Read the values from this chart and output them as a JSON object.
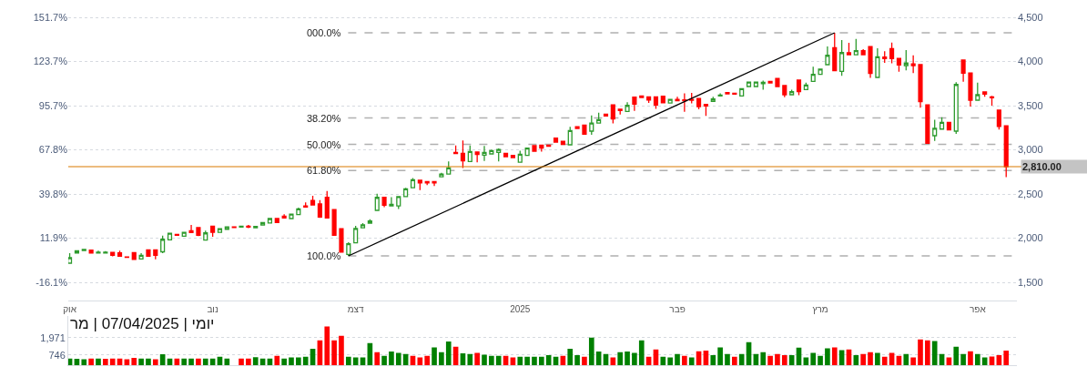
{
  "chart_data": [
    {
      "type": "candlestick",
      "categories": [
        "אוק",
        null,
        null,
        null,
        null,
        null,
        null,
        null,
        null,
        null,
        null,
        null,
        null,
        null,
        null,
        null,
        null,
        null,
        null,
        null,
        "נוב",
        null,
        null,
        null,
        null,
        null,
        null,
        null,
        null,
        null,
        null,
        null,
        null,
        null,
        null,
        null,
        null,
        null,
        null,
        null,
        "דצמ",
        null,
        null,
        null,
        null,
        null,
        null,
        null,
        null,
        null,
        null,
        null,
        null,
        null,
        null,
        null,
        null,
        null,
        null,
        null,
        null,
        null,
        null,
        "2025",
        null,
        null,
        null,
        null,
        null,
        null,
        null,
        null,
        null,
        null,
        null,
        null,
        null,
        null,
        null,
        null,
        null,
        null,
        null,
        null,
        null,
        "פבר",
        null,
        null,
        null,
        null,
        null,
        null,
        null,
        null,
        null,
        null,
        null,
        null,
        null,
        null,
        null,
        null,
        null,
        null,
        null,
        "מרץ",
        null,
        null,
        null,
        null,
        null,
        null,
        null,
        null,
        null,
        null,
        null,
        null,
        null,
        null,
        null,
        null,
        null,
        null,
        null,
        null,
        null,
        "אפר",
        null,
        null,
        null,
        null
      ],
      "series": [
        {
          "type": "candlestick",
          "ohlc": [
            [
              1717,
              1830,
              1717,
              1779
            ],
            [
              1833,
              1865,
              1825,
              1858
            ],
            [
              1861,
              1880,
              1855,
              1874
            ],
            [
              1864,
              1870,
              1825,
              1833
            ],
            [
              1833,
              1858,
              1830,
              1843
            ],
            [
              1833,
              1855,
              1828,
              1843
            ],
            [
              1840,
              1845,
              1795,
              1806
            ],
            [
              1833,
              1860,
              1796,
              1796
            ],
            [
              1789,
              1789,
              1782,
              1782
            ],
            [
              1837,
              1837,
              1761,
              1761
            ],
            [
              1765,
              1830,
              1765,
              1806
            ],
            [
              1868,
              1868,
              1796,
              1796
            ],
            [
              1868,
              1868,
              1760,
              1806
            ],
            [
              1846,
              2030,
              1830,
              1988
            ],
            [
              1982,
              2057,
              1982,
              2057
            ],
            [
              2043,
              2050,
              2030,
              2033
            ],
            [
              2023,
              2067,
              2023,
              2067
            ],
            [
              2085,
              2150,
              2064,
              2064
            ],
            [
              2119,
              2119,
              2023,
              2033
            ],
            [
              1978,
              2085,
              1978,
              2060
            ],
            [
              2136,
              2136,
              2016,
              2067
            ],
            [
              2067,
              2108,
              2067,
              2108
            ],
            [
              2101,
              2129,
              2101,
              2129
            ],
            [
              2129,
              2129,
              2122,
              2122
            ],
            [
              2125,
              2136,
              2125,
              2136
            ],
            [
              2136,
              2150,
              2115,
              2125
            ],
            [
              2118,
              2140,
              2118,
              2132
            ],
            [
              2150,
              2178,
              2150,
              2178
            ],
            [
              2173,
              2222,
              2173,
              2222
            ],
            [
              2222,
              2222,
              2178,
              2178
            ],
            [
              2250,
              2270,
              2229,
              2229
            ],
            [
              2222,
              2273,
              2222,
              2273
            ],
            [
              2267,
              2345,
              2267,
              2332
            ],
            [
              2366,
              2405,
              2353,
              2353
            ],
            [
              2428,
              2480,
              2377,
              2377
            ],
            [
              2387,
              2430,
              2230,
              2240
            ],
            [
              2462,
              2535,
              2229,
              2229
            ],
            [
              2325,
              2325,
              2033,
              2033
            ],
            [
              2108,
              2108,
              1843,
              1843
            ],
            [
              1817,
              1955,
              1800,
              1937
            ],
            [
              1947,
              2140,
              1947,
              2111
            ],
            [
              2118,
              2170,
              2118,
              2152
            ],
            [
              2170,
              2215,
              2170,
              2194
            ],
            [
              2315,
              2502,
              2315,
              2462
            ],
            [
              2462,
              2462,
              2350,
              2374
            ],
            [
              2366,
              2465,
              2366,
              2384
            ],
            [
              2366,
              2470,
              2330,
              2470
            ],
            [
              2470,
              2570,
              2470,
              2559
            ],
            [
              2572,
              2680,
              2572,
              2662
            ],
            [
              2655,
              2655,
              2545,
              2627
            ],
            [
              2640,
              2640,
              2600,
              2627
            ],
            [
              2640,
              2640,
              2590,
              2627
            ],
            [
              2696,
              2740,
              2696,
              2727
            ],
            [
              2727,
              2870,
              2727,
              2796
            ],
            [
              2971,
              3050,
              2957,
              2957
            ],
            [
              2961,
              3105,
              2795,
              2875
            ],
            [
              2868,
              3050,
              2868,
              2982
            ],
            [
              2975,
              2975,
              2860,
              2947
            ],
            [
              2940,
              3045,
              2875,
              2971
            ],
            [
              2954,
              3002,
              2954,
              2992
            ],
            [
              2971,
              3015,
              2870,
              3005
            ],
            [
              2961,
              2961,
              2923,
              2923
            ],
            [
              2937,
              2937,
              2913,
              2913
            ],
            [
              2861,
              2990,
              2861,
              2951
            ],
            [
              2937,
              3019,
              2937,
              3019
            ],
            [
              3047,
              3047,
              2985,
              2985
            ],
            [
              3054,
              3054,
              2980,
              3019
            ],
            [
              3054,
              3054,
              3040,
              3040
            ],
            [
              3132,
              3132,
              3088,
              3088
            ],
            [
              3098,
              3098,
              3060,
              3060
            ],
            [
              3057,
              3260,
              3057,
              3219
            ],
            [
              3263,
              3263,
              3242,
              3242
            ],
            [
              3281,
              3281,
              3170,
              3178
            ],
            [
              3212,
              3390,
              3170,
              3304
            ],
            [
              3304,
              3420,
              3304,
              3342
            ],
            [
              3404,
              3404,
              3384,
              3384
            ],
            [
              3510,
              3510,
              3300,
              3349
            ],
            [
              3459,
              3459,
              3400,
              3446
            ],
            [
              3435,
              3540,
              3435,
              3503
            ],
            [
              3596,
              3596,
              3440,
              3518
            ],
            [
              3610,
              3610,
              3593,
              3593
            ],
            [
              3600,
              3600,
              3530,
              3565
            ],
            [
              3600,
              3600,
              3465,
              3507
            ],
            [
              3606,
              3606,
              3534,
              3534
            ],
            [
              3531,
              3572,
              3531,
              3572
            ],
            [
              3572,
              3600,
              3555,
              3555
            ],
            [
              3565,
              3640,
              3430,
              3555
            ],
            [
              3572,
              3645,
              3525,
              3562
            ],
            [
              3580,
              3580,
              3460,
              3490
            ],
            [
              3514,
              3514,
              3385,
              3497
            ],
            [
              3548,
              3600,
              3548,
              3575
            ],
            [
              3610,
              3640,
              3610,
              3620
            ],
            [
              3648,
              3648,
              3634,
              3634
            ],
            [
              3640,
              3640,
              3630,
              3630
            ],
            [
              3610,
              3693,
              3610,
              3693
            ],
            [
              3717,
              3768,
              3717,
              3768
            ],
            [
              3717,
              3768,
              3717,
              3768
            ],
            [
              3750,
              3785,
              3680,
              3765
            ],
            [
              3775,
              3775,
              3758,
              3758
            ],
            [
              3809,
              3809,
              3717,
              3717
            ],
            [
              3727,
              3727,
              3595,
              3624
            ],
            [
              3624,
              3680,
              3624,
              3658
            ],
            [
              3789,
              3789,
              3620,
              3658
            ],
            [
              3683,
              3760,
              3683,
              3734
            ],
            [
              3775,
              3940,
              3775,
              3854
            ],
            [
              3854,
              3920,
              3854,
              3913
            ],
            [
              3964,
              4170,
              3964,
              4070
            ],
            [
              4157,
              4325,
              3895,
              3895
            ],
            [
              3889,
              4243,
              3838,
              4101
            ],
            [
              4098,
              4212,
              4077,
              4077
            ],
            [
              4077,
              4256,
              4077,
              4122
            ],
            [
              4122,
              4140,
              4077,
              4077
            ],
            [
              4170,
              4170,
              3815,
              3864
            ],
            [
              3820,
              4150,
              3820,
              4054
            ],
            [
              4050,
              4115,
              3985,
              4033
            ],
            [
              4146,
              4215,
              3980,
              4033
            ],
            [
              4036,
              4036,
              3885,
              3961
            ],
            [
              3954,
              4130,
              3900,
              3982
            ],
            [
              3974,
              4070,
              3870,
              3954
            ],
            [
              3964,
              3964,
              3476,
              3545
            ],
            [
              3510,
              3510,
              3074,
              3074
            ],
            [
              3160,
              3340,
              3100,
              3243
            ],
            [
              3235,
              3370,
              3235,
              3311
            ],
            [
              3311,
              3311,
              3225,
              3225
            ],
            [
              3212,
              3765,
              3180,
              3740
            ],
            [
              4016,
              4016,
              3770,
              3868
            ],
            [
              3871,
              3871,
              3490,
              3562
            ],
            [
              3562,
              3760,
              3562,
              3624
            ],
            [
              3655,
              3655,
              3600,
              3631
            ],
            [
              3600,
              3610,
              3500,
              3589
            ],
            [
              3449,
              3449,
              3230,
              3266
            ],
            [
              3273,
              3273,
              2690,
              2810
            ]
          ]
        },
        {
          "type": "line",
          "color": "#000000",
          "values": [
            null,
            null,
            null,
            null,
            null,
            null,
            null,
            null,
            null,
            null,
            null,
            null,
            null,
            null,
            null,
            null,
            null,
            null,
            null,
            null,
            null,
            null,
            null,
            null,
            null,
            null,
            null,
            null,
            null,
            null,
            null,
            null,
            null,
            null,
            null,
            null,
            null,
            null,
            null,
            1800,
            null,
            null,
            null,
            null,
            null,
            null,
            null,
            null,
            null,
            null,
            null,
            null,
            null,
            null,
            null,
            null,
            null,
            null,
            null,
            null,
            null,
            null,
            null,
            null,
            null,
            null,
            null,
            null,
            null,
            null,
            null,
            null,
            null,
            null,
            null,
            null,
            null,
            null,
            null,
            null,
            null,
            null,
            null,
            null,
            null,
            null,
            null,
            null,
            null,
            null,
            null,
            null,
            null,
            null,
            null,
            null,
            null,
            null,
            null,
            null,
            null,
            null,
            null,
            null,
            null,
            null,
            null,
            4325,
            null,
            null,
            null,
            null,
            null,
            null,
            null,
            null,
            null,
            null,
            null,
            null,
            null,
            null,
            null,
            null,
            null,
            null,
            null,
            null,
            null,
            null,
            null,
            null
          ]
        }
      ],
      "ylim": [
        1294,
        4696
      ],
      "yticks": [
        {
          "value": 1500,
          "label": "1,500"
        },
        {
          "value": 2000,
          "label": "2,000"
        },
        {
          "value": 2500,
          "label": "2,500"
        },
        {
          "value": 3000,
          "label": "3,000"
        },
        {
          "value": 3500,
          "label": "3,500"
        },
        {
          "value": 4000,
          "label": "4,000"
        },
        {
          "value": 4500,
          "label": "4,500"
        }
      ],
      "y2lim": [
        -27.6,
        162.7
      ],
      "y2ticks": [
        {
          "value": -16.1,
          "label": "-16.1%"
        },
        {
          "value": 11.9,
          "label": "11.9%"
        },
        {
          "value": 39.8,
          "label": "39.8%"
        },
        {
          "value": 67.8,
          "label": "67.8%"
        },
        {
          "value": 95.7,
          "label": "95.7%"
        },
        {
          "value": 123.7,
          "label": "123.7%"
        },
        {
          "value": 151.7,
          "label": "151.7%"
        }
      ],
      "ref_lines": [
        {
          "axis": "y",
          "value": 4325,
          "color": "#b0b0b0",
          "line_style": "dashed"
        },
        {
          "axis": "y",
          "value": 3360,
          "color": "#b0b0b0",
          "line_style": "dashed"
        },
        {
          "axis": "y",
          "value": 3062,
          "color": "#b0b0b0",
          "line_style": "dashed"
        },
        {
          "axis": "y",
          "value": 2765,
          "color": "#b0b0b0",
          "line_style": "dashed"
        },
        {
          "axis": "y",
          "value": 1800,
          "color": "#b0b0b0",
          "line_style": "dashed"
        },
        {
          "axis": "y",
          "value": 2810,
          "label": "2,810.00",
          "color": "#d97a00",
          "line_style": "solid"
        }
      ],
      "annotations": [
        "000.0%",
        "38.20%",
        "50.00%",
        "61.80%",
        "100.0%"
      ],
      "grid": "y"
    },
    {
      "type": "bar",
      "categories": [
        null,
        null,
        null,
        null,
        null,
        null,
        null,
        null,
        null,
        null,
        null,
        null,
        null,
        null,
        null,
        null,
        null,
        null,
        null,
        null,
        null,
        null,
        null,
        null,
        null,
        null,
        null,
        null,
        null,
        null,
        null,
        null,
        null,
        null,
        null,
        null,
        null,
        null,
        null,
        null,
        null,
        null,
        null,
        null,
        null,
        null,
        null,
        null,
        null,
        null,
        null,
        null,
        null,
        null,
        null,
        null,
        null,
        null,
        null,
        null,
        null,
        null,
        null,
        null,
        null,
        null,
        null,
        null,
        null,
        null,
        null,
        null,
        null,
        null,
        null,
        null,
        null,
        null,
        null,
        null,
        null,
        null,
        null,
        null,
        null,
        null,
        null,
        null,
        null,
        null,
        null,
        null,
        null,
        null,
        null,
        null,
        null,
        null,
        null,
        null,
        null,
        null,
        null,
        null,
        null,
        null,
        null,
        null,
        null,
        null,
        null,
        null,
        null,
        null,
        null,
        null,
        null,
        null,
        null,
        null,
        null,
        null,
        null,
        null,
        null,
        null,
        null,
        null,
        null,
        null,
        null,
        null
      ],
      "values": [
        496,
        471,
        446,
        496,
        496,
        471,
        496,
        496,
        446,
        546,
        496,
        496,
        446,
        794,
        496,
        496,
        496,
        496,
        496,
        496,
        496,
        620,
        496,
        null,
        496,
        496,
        595,
        496,
        496,
        694,
        496,
        570,
        570,
        620,
        1190,
        1786,
        2778,
        1786,
        2108,
        620,
        570,
        570,
        1587,
        942,
        694,
        992,
        893,
        818,
        694,
        570,
        694,
        1290,
        942,
        1711,
        1339,
        868,
        818,
        893,
        769,
        694,
        694,
        694,
        570,
        620,
        620,
        620,
        620,
        744,
        620,
        694,
        1190,
        744,
        620,
        1984,
        992,
        818,
        570,
        942,
        992,
        893,
        1786,
        620,
        1141,
        620,
        570,
        818,
        694,
        570,
        1017,
        1066,
        744,
        1290,
        818,
        620,
        818,
        1662,
        818,
        942,
        694,
        818,
        744,
        744,
        1265,
        570,
        893,
        694,
        1215,
        1290,
        1091,
        1141,
        744,
        818,
        942,
        893,
        620,
        893,
        694,
        818,
        570,
        1860,
        1786,
        1736,
        818,
        570,
        1339,
        818,
        1017,
        818,
        570,
        645,
        744,
        1066
      ],
      "colors": [
        "#008000",
        "#008000",
        "#008000",
        "#ff0000",
        "#008000",
        "#ff0000",
        "#ff0000",
        "#ff0000",
        "#ff0000",
        "#ff0000",
        "#008000",
        "#008000",
        "#ff0000",
        "#008000",
        "#008000",
        "#ff0000",
        "#008000",
        "#008000",
        "#ff0000",
        "#008000",
        "#008000",
        "#008000",
        "#008000",
        "#008000",
        "#ff0000",
        "#ff0000",
        "#008000",
        "#008000",
        "#008000",
        "#ff0000",
        "#008000",
        "#008000",
        "#008000",
        "#008000",
        "#008000",
        "#ff0000",
        "#ff0000",
        "#ff0000",
        "#ff0000",
        "#008000",
        "#008000",
        "#008000",
        "#008000",
        "#ff0000",
        "#008000",
        "#008000",
        "#008000",
        "#008000",
        "#ff0000",
        "#ff0000",
        "#ff0000",
        "#008000",
        "#008000",
        "#008000",
        "#ff0000",
        "#008000",
        "#008000",
        "#ff0000",
        "#008000",
        "#008000",
        "#008000",
        "#ff0000",
        "#ff0000",
        "#008000",
        "#008000",
        "#008000",
        "#008000",
        "#008000",
        "#008000",
        "#ff0000",
        "#008000",
        "#008000",
        "#ff0000",
        "#008000",
        "#008000",
        "#008000",
        "#ff0000",
        "#008000",
        "#008000",
        "#008000",
        "#008000",
        "#ff0000",
        "#ff0000",
        "#008000",
        "#008000",
        "#008000",
        "#ff0000",
        "#008000",
        "#ff0000",
        "#ff0000",
        "#008000",
        "#008000",
        "#008000",
        "#ff0000",
        "#008000",
        "#008000",
        "#008000",
        "#008000",
        "#ff0000",
        "#ff0000",
        "#ff0000",
        "#008000",
        "#008000",
        "#008000",
        "#008000",
        "#008000",
        "#008000",
        "#ff0000",
        "#008000",
        "#ff0000",
        "#008000",
        "#ff0000",
        "#ff0000",
        "#008000",
        "#ff0000",
        "#ff0000",
        "#ff0000",
        "#008000",
        "#ff0000",
        "#ff0000",
        "#ff0000",
        "#008000",
        "#008000",
        "#ff0000",
        "#008000",
        "#008000",
        "#ff0000",
        "#008000",
        "#008000",
        "#ff0000",
        "#ff0000",
        "#ff0000"
      ],
      "ylim": [
        0,
        3520
      ],
      "yticks": [
        746,
        {
          "value": 1971,
          "label": "1,971"
        }
      ],
      "annotations": [
        "יומי | 07/04/2025 | מר"
      ],
      "tick_labels": "y",
      "grid": "y"
    }
  ]
}
